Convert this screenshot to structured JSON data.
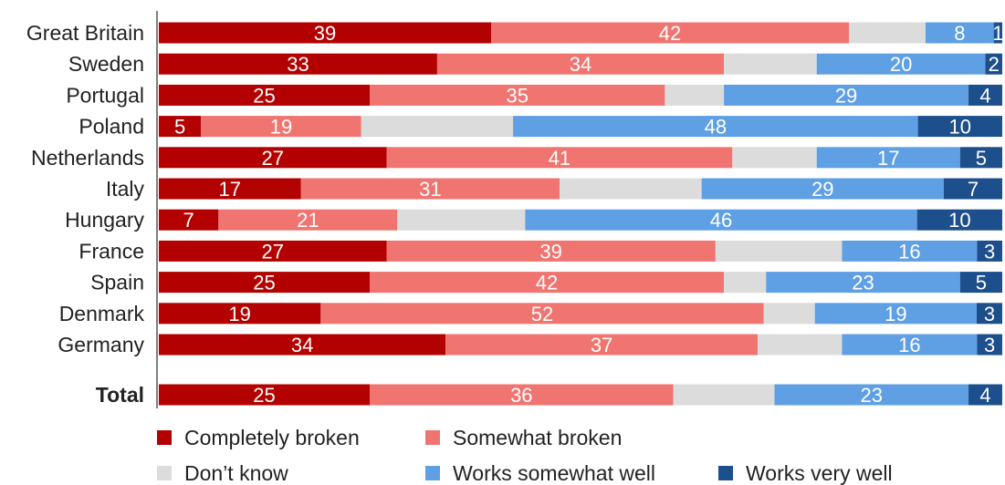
{
  "chart_data": {
    "type": "bar",
    "orientation": "horizontal",
    "stacked": true,
    "categories": [
      "Great Britain",
      "Sweden",
      "Portugal",
      "Poland",
      "Netherlands",
      "Italy",
      "Hungary",
      "France",
      "Spain",
      "Denmark",
      "Germany",
      "Total"
    ],
    "emphasized_category": "Total",
    "series": [
      {
        "name": "Completely broken",
        "color": "#b30000",
        "values": [
          39,
          33,
          25,
          5,
          27,
          17,
          7,
          27,
          25,
          19,
          34,
          25
        ]
      },
      {
        "name": "Somewhat broken",
        "color": "#f07470",
        "values": [
          42,
          34,
          35,
          19,
          41,
          31,
          21,
          39,
          42,
          52,
          37,
          36
        ]
      },
      {
        "name": "Don’t know",
        "color": "#dcdcdc",
        "values": [
          9,
          11,
          7,
          18,
          10,
          17,
          15,
          15,
          5,
          6,
          10,
          12
        ],
        "show_labels": false
      },
      {
        "name": "Works somewhat well",
        "color": "#5f9fe3",
        "values": [
          8,
          20,
          29,
          48,
          17,
          29,
          46,
          16,
          23,
          19,
          16,
          23
        ]
      },
      {
        "name": "Works very well",
        "color": "#1c4f8c",
        "values": [
          1,
          2,
          4,
          10,
          5,
          7,
          10,
          3,
          5,
          3,
          3,
          4
        ]
      }
    ],
    "xlim": [
      0,
      100
    ],
    "grid": false,
    "legend": "bottom"
  }
}
